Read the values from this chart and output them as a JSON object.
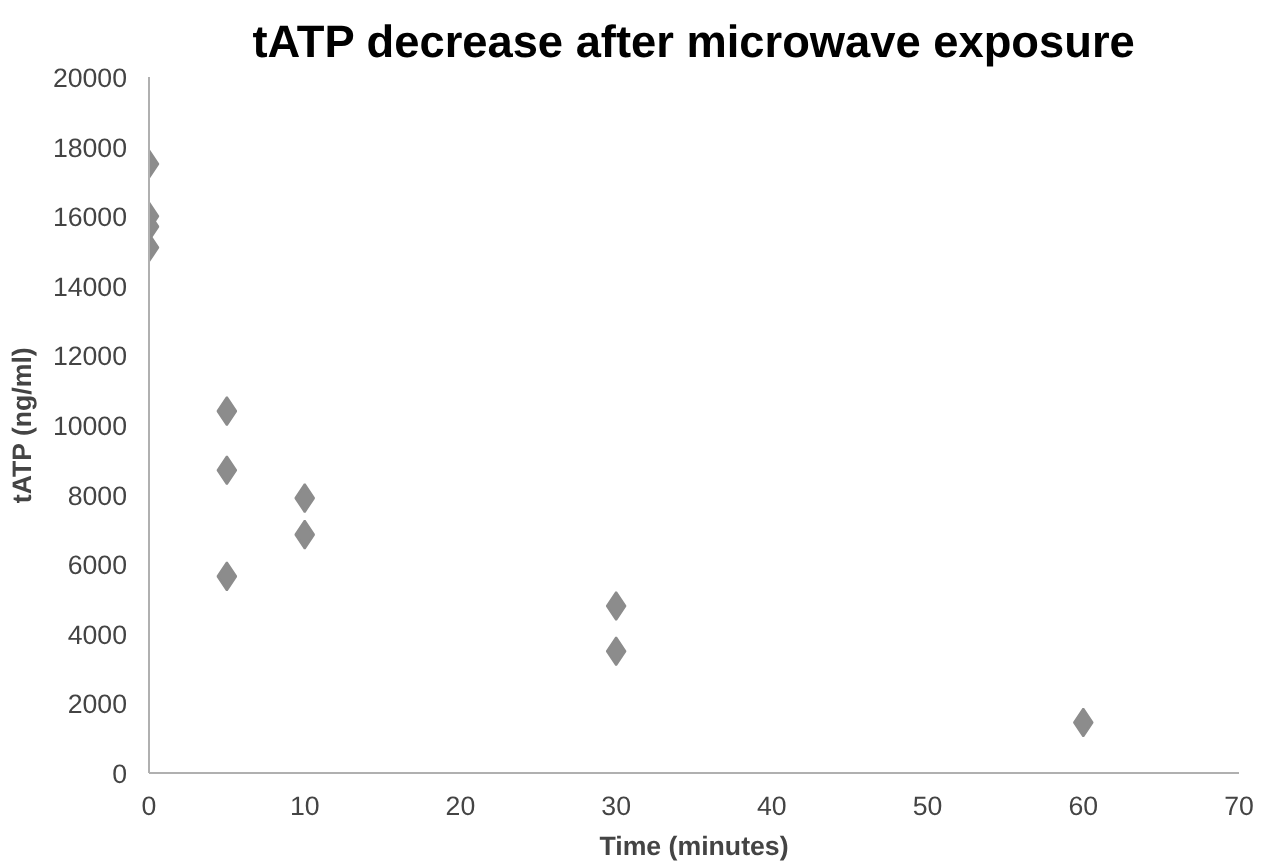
{
  "chart_data": {
    "type": "scatter",
    "title": "tATP decrease after microwave exposure",
    "xlabel": "Time (minutes)",
    "ylabel": "tATP (ng/ml)",
    "x": [
      0,
      0,
      0,
      0,
      5,
      5,
      5,
      10,
      10,
      30,
      30,
      60
    ],
    "series": [
      {
        "color": "#8c8c8c",
        "values": [
          17500,
          16000,
          15700,
          15100,
          10400,
          8700,
          5650,
          7900,
          6850,
          4800,
          3500,
          1450
        ]
      }
    ],
    "xlim": [
      0,
      70
    ],
    "xticks": [
      0,
      10,
      20,
      30,
      40,
      50,
      60,
      70
    ],
    "ylim": [
      0,
      20000
    ],
    "yticks": [
      0,
      2000,
      4000,
      6000,
      8000,
      10000,
      12000,
      14000,
      16000,
      18000,
      20000
    ],
    "grid": false,
    "marker": "diamond"
  }
}
